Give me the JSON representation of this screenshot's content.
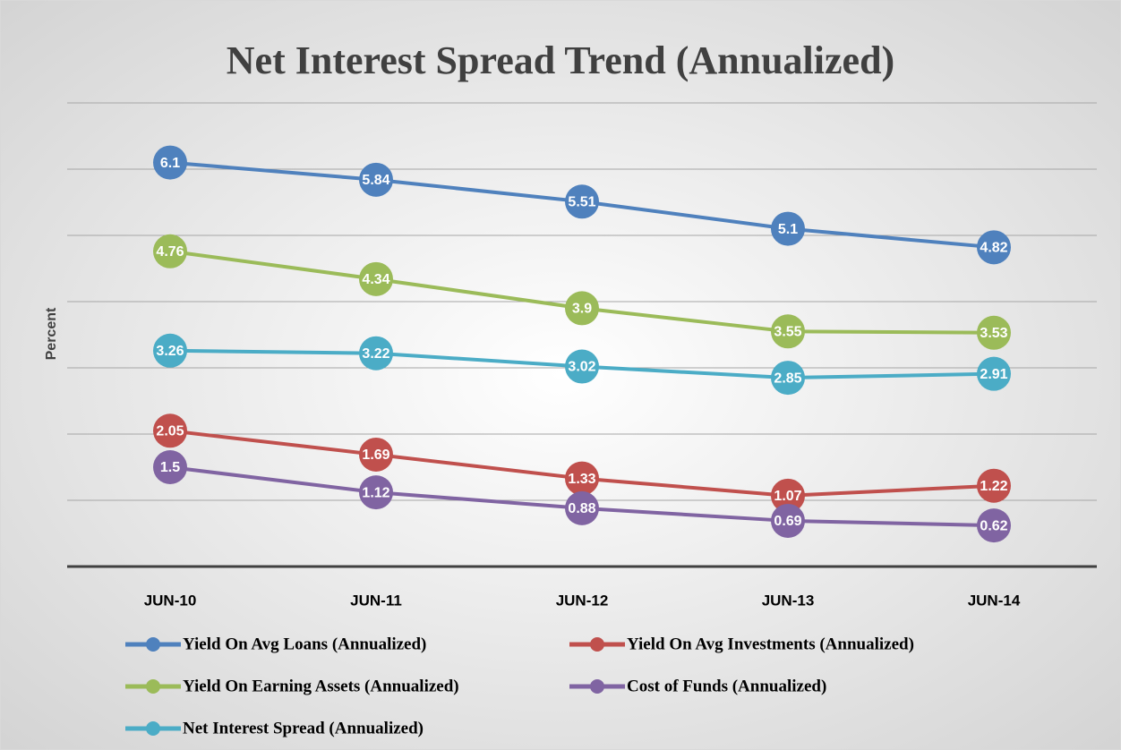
{
  "chart_data": {
    "type": "line",
    "title": "Net Interest Spread Trend (Annualized)",
    "y_label": "Percent",
    "categories": [
      "JUN-10",
      "JUN-11",
      "JUN-12",
      "JUN-13",
      "JUN-14"
    ],
    "series": [
      {
        "name": "Yield On Avg Loans (Annualized)",
        "color": "#4f81bd",
        "values": [
          6.1,
          5.84,
          5.51,
          5.1,
          4.82
        ]
      },
      {
        "name": "Yield On Avg Investments (Annualized)",
        "color": "#c0504d",
        "values": [
          2.05,
          1.69,
          1.33,
          1.07,
          1.22
        ]
      },
      {
        "name": "Yield On Earning Assets (Annualized)",
        "color": "#9bbb59",
        "values": [
          4.76,
          4.34,
          3.9,
          3.55,
          3.53
        ]
      },
      {
        "name": "Cost of Funds (Annualized)",
        "color": "#8064a2",
        "values": [
          1.5,
          1.12,
          0.88,
          0.69,
          0.62
        ]
      },
      {
        "name": "Net Interest Spread (Annualized)",
        "color": "#4bacc6",
        "values": [
          3.26,
          3.22,
          3.02,
          2.85,
          2.91
        ]
      }
    ],
    "ylim": [
      0,
      7
    ],
    "yticks": [
      0,
      1,
      2,
      3,
      4,
      5,
      6,
      7
    ],
    "grid": true,
    "legend": "bottom"
  }
}
